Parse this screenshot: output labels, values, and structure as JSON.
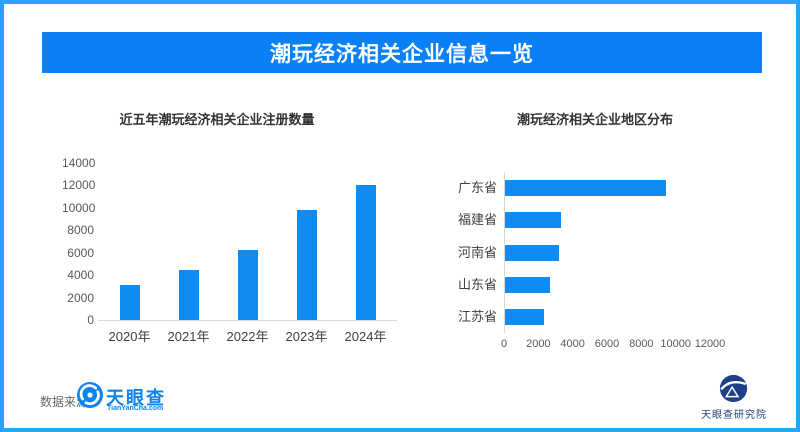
{
  "header": {
    "title": "潮玩经济相关企业信息一览"
  },
  "chart_data": [
    {
      "type": "bar",
      "title": "近五年潮玩经济相关企业注册数量",
      "categories": [
        "2020年",
        "2021年",
        "2022年",
        "2023年",
        "2024年"
      ],
      "values": [
        3100,
        4500,
        6200,
        9800,
        12000
      ],
      "xlabel": "",
      "ylabel": "",
      "ylim": [
        0,
        14000
      ],
      "yticks": [
        0,
        2000,
        4000,
        6000,
        8000,
        10000,
        12000,
        14000
      ],
      "grid": false,
      "legend": false,
      "bar_color": "#0e8cf2"
    },
    {
      "type": "bar-horizontal",
      "title": "潮玩经济相关企业地区分布",
      "categories": [
        "广东省",
        "福建省",
        "河南省",
        "山东省",
        "江苏省"
      ],
      "values": [
        9400,
        3250,
        3150,
        2600,
        2250
      ],
      "xlabel": "",
      "ylabel": "",
      "xlim": [
        0,
        12000
      ],
      "xticks": [
        0,
        2000,
        4000,
        6000,
        8000,
        10000,
        12000
      ],
      "grid": false,
      "legend": false,
      "bar_color": "#0e8cf2"
    }
  ],
  "footer": {
    "source_label": "数据来源：",
    "tianyancha_name": "天眼查",
    "tianyancha_sub": "TianYanCha.com",
    "research_institute": "天眼查研究院"
  },
  "colors": {
    "frame": "#27a2fd",
    "banner": "#0a80f5",
    "bar": "#0e8cf2",
    "brand_blue": "#0b83f0",
    "navy": "#23407c"
  }
}
